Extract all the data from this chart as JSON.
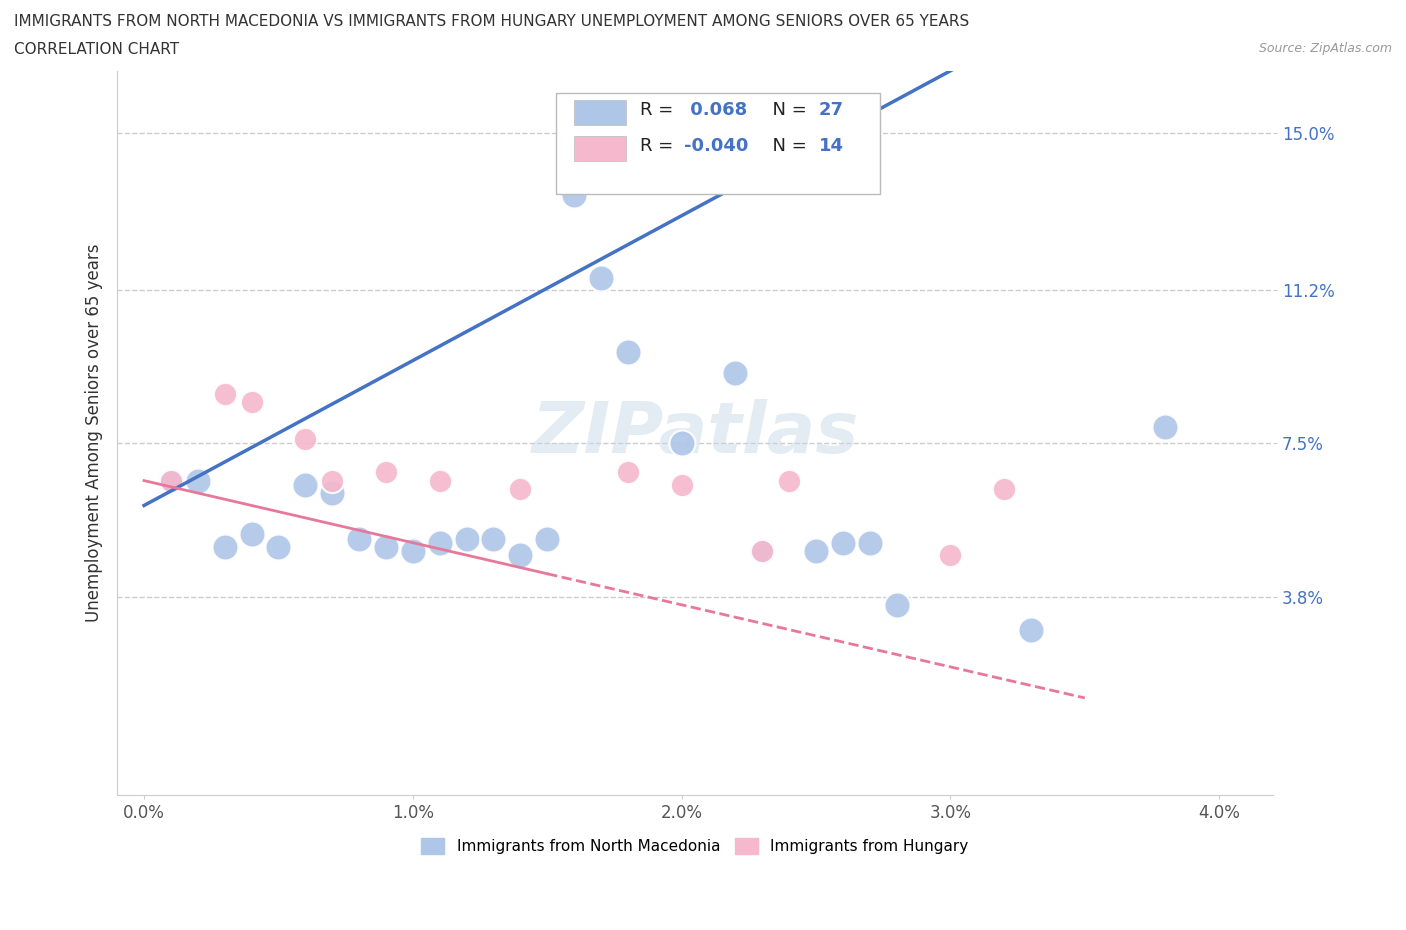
{
  "title_line1": "IMMIGRANTS FROM NORTH MACEDONIA VS IMMIGRANTS FROM HUNGARY UNEMPLOYMENT AMONG SENIORS OVER 65 YEARS",
  "title_line2": "CORRELATION CHART",
  "source": "Source: ZipAtlas.com",
  "ylabel_label": "Unemployment Among Seniors over 65 years",
  "legend1_label": "Immigrants from North Macedonia",
  "legend2_label": "Immigrants from Hungary",
  "R1": 0.068,
  "N1": 27,
  "R2": -0.04,
  "N2": 14,
  "color_blue": "#aec6e8",
  "color_pink": "#f5b8cc",
  "line_blue": "#4472c4",
  "line_pink": "#e8789a",
  "watermark": "ZIPatlas",
  "blue_x": [
    0.001,
    0.002,
    0.003,
    0.004,
    0.005,
    0.006,
    0.007,
    0.008,
    0.009,
    0.01,
    0.011,
    0.012,
    0.013,
    0.014,
    0.015,
    0.016,
    0.017,
    0.018,
    0.02,
    0.022,
    0.023,
    0.025,
    0.026,
    0.027,
    0.028,
    0.033,
    0.038
  ],
  "blue_y": [
    0.066,
    0.066,
    0.05,
    0.053,
    0.05,
    0.065,
    0.063,
    0.052,
    0.05,
    0.049,
    0.051,
    0.052,
    0.052,
    0.048,
    0.052,
    0.135,
    0.115,
    0.097,
    0.075,
    0.092,
    0.049,
    0.049,
    0.051,
    0.051,
    0.036,
    0.03,
    0.079
  ],
  "pink_x": [
    0.001,
    0.003,
    0.004,
    0.006,
    0.007,
    0.009,
    0.011,
    0.014,
    0.018,
    0.02,
    0.023,
    0.024,
    0.03,
    0.032
  ],
  "pink_y": [
    0.066,
    0.087,
    0.085,
    0.076,
    0.066,
    0.068,
    0.066,
    0.064,
    0.068,
    0.065,
    0.049,
    0.066,
    0.048,
    0.064
  ],
  "xlim": [
    -0.001,
    0.042
  ],
  "ylim": [
    -0.01,
    0.165
  ],
  "ytick_vals": [
    0.038,
    0.075,
    0.112,
    0.15
  ],
  "ytick_labels": [
    "3.8%",
    "7.5%",
    "11.2%",
    "15.0%"
  ],
  "xtick_vals": [
    0.0,
    0.01,
    0.02,
    0.03,
    0.04
  ],
  "xtick_labels": [
    "0.0%",
    "1.0%",
    "2.0%",
    "3.0%",
    "4.0%"
  ],
  "grid_color": "#cccccc",
  "bubble_size_blue": 350,
  "bubble_size_pink": 280,
  "blue_line_intercept": 0.06,
  "blue_line_slope": 3.5,
  "pink_line_intercept": 0.066,
  "pink_line_slope": -1.5
}
